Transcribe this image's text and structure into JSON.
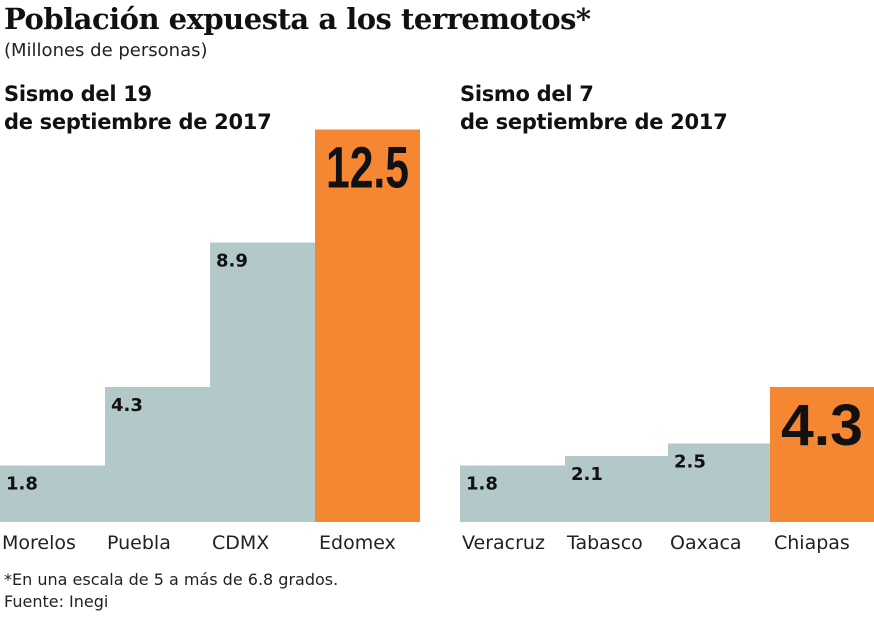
{
  "title": "Población expuesta a los terremotos*",
  "subtitle": "(Millones de personas)",
  "footnote": "*En una escala de 5 a más de 6.8 grados.",
  "source": "Fuente: Inegi",
  "colors": {
    "base": "#b3c9c9",
    "highlight": "#f58632"
  },
  "chart_data": [
    {
      "type": "bar",
      "title_line1": "Sismo del 19",
      "title_line2": "de septiembre de 2017",
      "categories": [
        "Morelos",
        "Puebla",
        "CDMX",
        "Edomex"
      ],
      "values": [
        1.8,
        4.3,
        8.9,
        12.5
      ],
      "highlight": "Edomex",
      "ylim": [
        0,
        12.5
      ],
      "grid": false
    },
    {
      "type": "bar",
      "title_line1": "Sismo del 7",
      "title_line2": "de septiembre de 2017",
      "categories": [
        "Veracruz",
        "Tabasco",
        "Oaxaca",
        "Chiapas"
      ],
      "values": [
        1.8,
        2.1,
        2.5,
        4.3
      ],
      "highlight": "Chiapas",
      "ylim": [
        0,
        12.5
      ],
      "grid": false
    }
  ]
}
